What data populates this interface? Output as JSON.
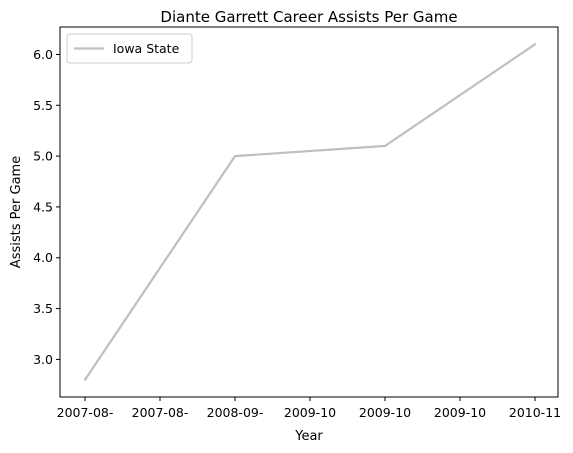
{
  "chart_data": {
    "type": "line",
    "title": "Diante Garrett Career Assists Per Game",
    "xlabel": "Year",
    "ylabel": "Assists Per Game",
    "x_tick_labels": [
      "2007-08-",
      "2007-08-",
      "2008-09-",
      "2009-10",
      "2009-10",
      "2009-10",
      "2010-11"
    ],
    "y_ticks": [
      3.0,
      3.5,
      4.0,
      4.5,
      5.0,
      5.5,
      6.0
    ],
    "y_tick_labels": [
      "3.0",
      "3.5",
      "4.0",
      "4.5",
      "5.0",
      "5.5",
      "6.0"
    ],
    "ylim": [
      2.63,
      6.27
    ],
    "series": [
      {
        "name": "Iowa State",
        "color": "#bfbfbf",
        "points": [
          {
            "x": 0,
            "y": 2.8
          },
          {
            "x": 2,
            "y": 5.0
          },
          {
            "x": 4,
            "y": 5.1
          },
          {
            "x": 6,
            "y": 6.1
          }
        ]
      }
    ],
    "grid": false,
    "legend_position": "top-left"
  }
}
